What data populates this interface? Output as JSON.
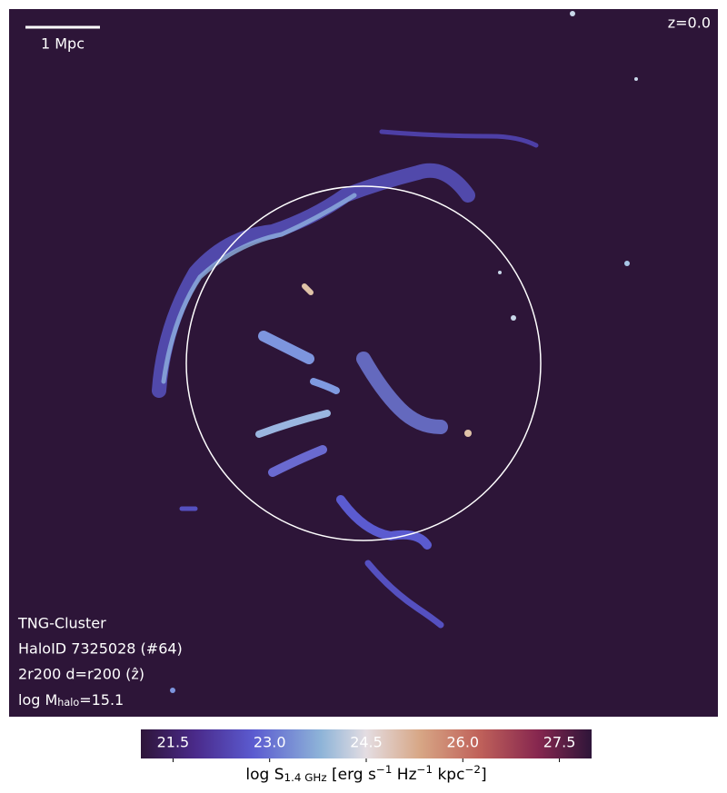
{
  "map": {
    "scale_bar": "1 Mpc",
    "redshift": "z=0.0",
    "info": [
      "TNG-Cluster",
      "HaloID 7325028 (#64)",
      "2r200 d=r200 (ẑ)"
    ],
    "mass_label": [
      {
        "text": "log M"
      },
      {
        "sub": "halo"
      },
      {
        "text": "=15.1"
      }
    ]
  },
  "colorbar": {
    "lim": [
      21,
      28
    ],
    "ticks": [
      21.5,
      {
        "value": 23,
        "label": "23.0"
      },
      24.5,
      {
        "value": 26,
        "label": "26.0"
      },
      27.5
    ],
    "label": [
      {
        "text": "log S"
      },
      {
        "sub": "1.4 GHz"
      },
      {
        "text": " [erg s"
      },
      {
        "sup": "−1"
      },
      {
        "text": " Hz"
      },
      {
        "sup": "−1"
      },
      {
        "text": " kpc"
      },
      {
        "sup": "−2"
      },
      {
        "text": "]"
      }
    ]
  }
}
